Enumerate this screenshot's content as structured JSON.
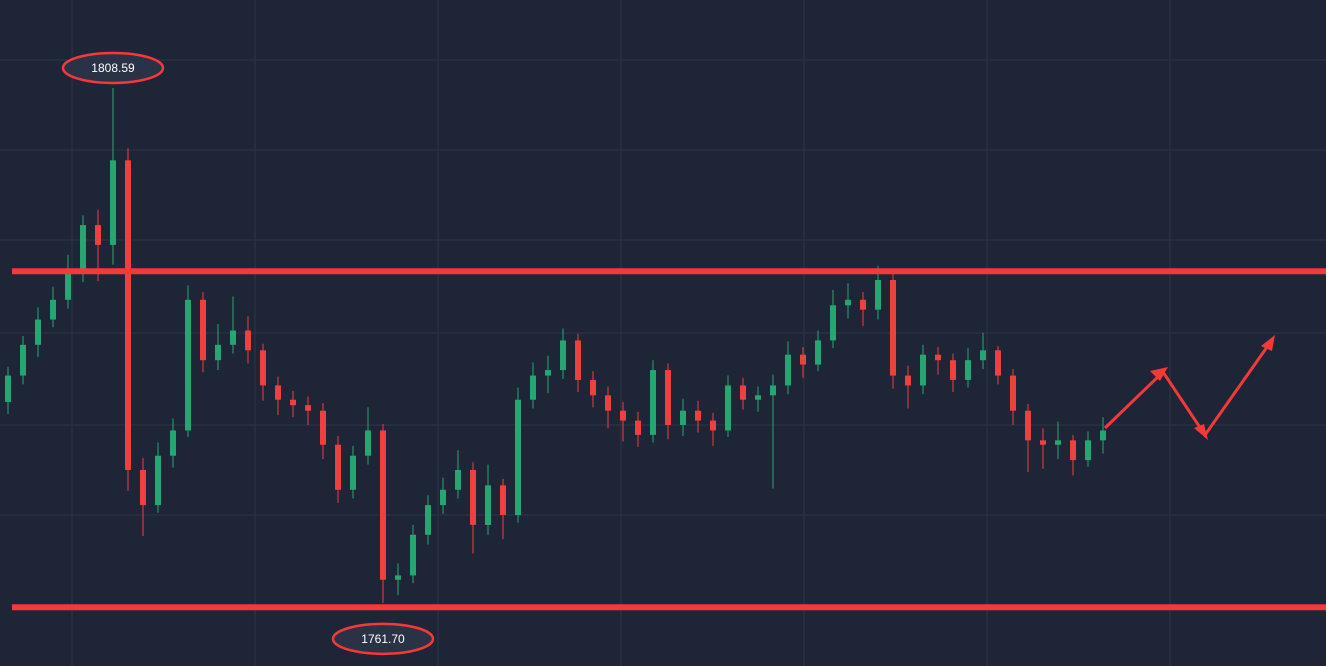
{
  "chart_data": {
    "type": "candlestick",
    "up_color": "#26a671",
    "down_color": "#ef4040",
    "level_color": "#f53838",
    "ylim": [
      1755.95,
      1816.6
    ],
    "open": [
      1780.0,
      1782.4,
      1785.2,
      1787.5,
      1789.3,
      1792.0,
      1796.1,
      1794.3,
      1802.0,
      1773.8,
      1770.6,
      1775.1,
      1777.4,
      1789.3,
      1783.8,
      1785.2,
      1786.5,
      1784.7,
      1781.5,
      1780.2,
      1779.7,
      1779.2,
      1776.1,
      1772.0,
      1775.1,
      1777.4,
      1763.8,
      1764.2,
      1767.9,
      1770.6,
      1772.0,
      1773.8,
      1768.8,
      1772.4,
      1769.7,
      1780.2,
      1782.4,
      1782.9,
      1785.6,
      1782.0,
      1780.6,
      1779.2,
      1778.3,
      1777.0,
      1782.9,
      1777.9,
      1779.2,
      1778.3,
      1777.4,
      1781.5,
      1780.2,
      1780.6,
      1781.5,
      1784.3,
      1783.4,
      1785.6,
      1788.8,
      1789.3,
      1788.4,
      1791.1,
      1782.4,
      1781.5,
      1784.3,
      1783.8,
      1782.0,
      1783.8,
      1784.7,
      1782.4,
      1779.2,
      1776.5,
      1776.1,
      1776.5,
      1774.7,
      1776.5
    ],
    "high": [
      1783.2,
      1786.0,
      1788.6,
      1790.5,
      1793.4,
      1797.0,
      1797.5,
      1808.59,
      1803.1,
      1774.9,
      1776.3,
      1778.5,
      1790.6,
      1790.0,
      1787.1,
      1789.6,
      1787.8,
      1785.3,
      1782.3,
      1781.0,
      1780.5,
      1779.9,
      1776.9,
      1776.0,
      1779.5,
      1778.0,
      1765.3,
      1768.8,
      1771.5,
      1773.1,
      1775.6,
      1774.5,
      1774.3,
      1773.0,
      1781.3,
      1783.6,
      1784.2,
      1786.7,
      1786.2,
      1782.8,
      1781.4,
      1780.0,
      1779.1,
      1783.8,
      1783.5,
      1780.3,
      1780.1,
      1779.0,
      1782.4,
      1782.2,
      1781.4,
      1782.5,
      1785.5,
      1785.0,
      1786.5,
      1790.2,
      1790.8,
      1790.0,
      1792.4,
      1791.8,
      1783.3,
      1785.2,
      1785.0,
      1784.4,
      1784.9,
      1786.3,
      1785.1,
      1783.0,
      1779.8,
      1777.6,
      1778.2,
      1777.0,
      1777.3,
      1778.6
    ],
    "low": [
      1778.9,
      1781.6,
      1784.1,
      1786.8,
      1788.5,
      1790.9,
      1791.0,
      1792.5,
      1771.9,
      1767.8,
      1769.9,
      1774.0,
      1776.8,
      1782.7,
      1782.9,
      1784.4,
      1783.5,
      1780.1,
      1778.8,
      1778.6,
      1777.9,
      1774.8,
      1770.8,
      1771.2,
      1774.3,
      1761.7,
      1762.4,
      1763.5,
      1767.0,
      1769.8,
      1771.2,
      1766.2,
      1767.9,
      1767.5,
      1769.0,
      1779.4,
      1780.8,
      1782.1,
      1780.9,
      1779.5,
      1777.6,
      1776.4,
      1775.9,
      1776.3,
      1776.6,
      1776.9,
      1777.2,
      1776.0,
      1776.8,
      1779.3,
      1779.1,
      1772.1,
      1780.7,
      1782.2,
      1782.8,
      1784.9,
      1787.6,
      1786.9,
      1787.5,
      1781.2,
      1779.4,
      1780.7,
      1782.5,
      1780.9,
      1781.3,
      1783.0,
      1781.6,
      1777.9,
      1773.6,
      1773.9,
      1774.8,
      1773.3,
      1774.1,
      1775.3
    ],
    "close": [
      1782.4,
      1785.2,
      1787.5,
      1789.3,
      1792.0,
      1796.1,
      1794.3,
      1802.0,
      1773.8,
      1770.6,
      1775.1,
      1777.4,
      1789.3,
      1783.8,
      1785.2,
      1786.5,
      1784.7,
      1781.5,
      1780.2,
      1779.7,
      1779.2,
      1776.1,
      1772.0,
      1775.1,
      1777.4,
      1763.8,
      1764.2,
      1767.9,
      1770.6,
      1772.0,
      1773.8,
      1768.8,
      1772.4,
      1769.7,
      1780.2,
      1782.4,
      1782.9,
      1785.6,
      1782.0,
      1780.6,
      1779.2,
      1778.3,
      1777.0,
      1782.9,
      1777.9,
      1779.2,
      1778.3,
      1777.4,
      1781.5,
      1780.2,
      1780.6,
      1781.5,
      1784.3,
      1783.4,
      1785.6,
      1788.8,
      1789.3,
      1788.4,
      1791.1,
      1782.4,
      1781.5,
      1784.3,
      1783.8,
      1782.0,
      1783.8,
      1784.7,
      1782.4,
      1779.2,
      1776.5,
      1776.1,
      1776.5,
      1774.7,
      1776.5,
      1777.4
    ],
    "levels": [
      1791.9,
      1761.3
    ],
    "annotations": [
      {
        "label": "1808.59",
        "value": 1808.59,
        "at": "high"
      },
      {
        "label": "1761.70",
        "value": 1761.7,
        "at": "low"
      }
    ]
  }
}
